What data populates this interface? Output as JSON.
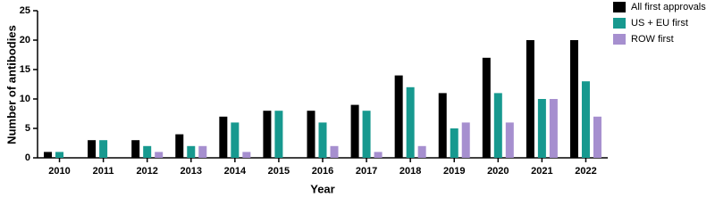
{
  "chart_data": {
    "type": "bar",
    "x_label": "Year",
    "y_label": "Number of antibodies",
    "categories": [
      "2010",
      "2011",
      "2012",
      "2013",
      "2014",
      "2015",
      "2016",
      "2017",
      "2018",
      "2019",
      "2020",
      "2021",
      "2022"
    ],
    "series": [
      {
        "name": "All first approvals",
        "color": "#000000",
        "values": [
          1,
          3,
          3,
          4,
          7,
          8,
          8,
          9,
          14,
          11,
          17,
          20,
          20
        ]
      },
      {
        "name": "US + EU first",
        "color": "#17998f",
        "values": [
          1,
          3,
          2,
          2,
          6,
          8,
          6,
          8,
          12,
          5,
          11,
          10,
          13
        ]
      },
      {
        "name": "ROW first",
        "color": "#a68fcf",
        "values": [
          0,
          0,
          1,
          2,
          1,
          0,
          2,
          1,
          2,
          6,
          6,
          10,
          7
        ]
      }
    ],
    "ylim": [
      0,
      25
    ],
    "yticks": [
      0,
      5,
      10,
      15,
      20,
      25
    ],
    "legend": "top-right"
  }
}
